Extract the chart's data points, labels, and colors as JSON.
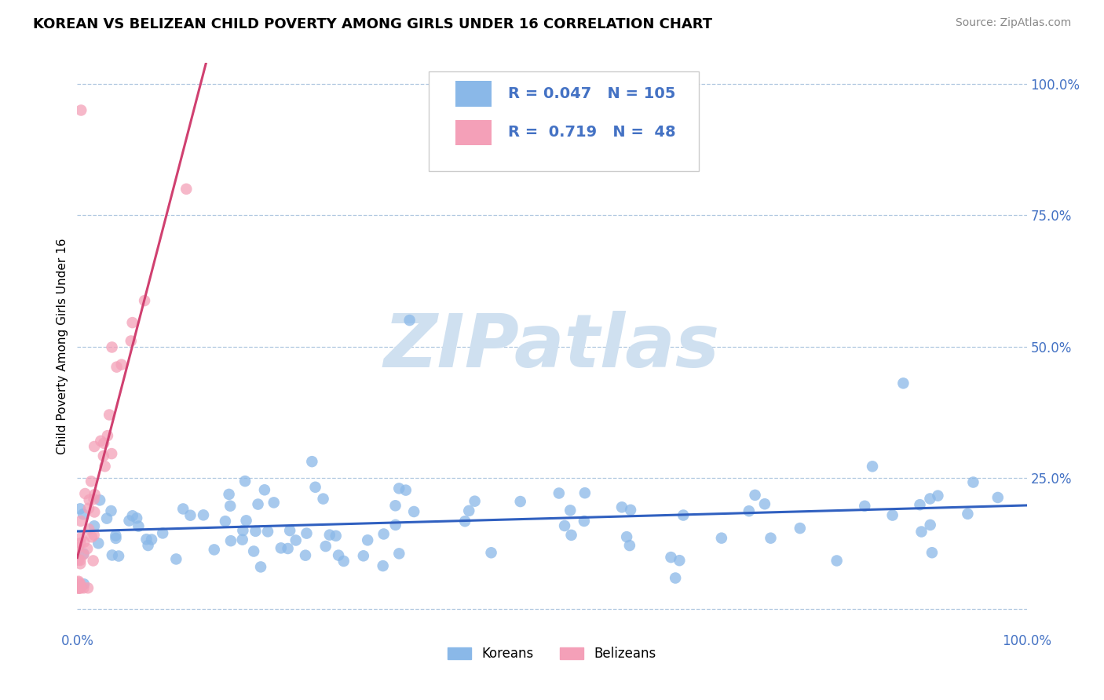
{
  "title": "KOREAN VS BELIZEAN CHILD POVERTY AMONG GIRLS UNDER 16 CORRELATION CHART",
  "source": "Source: ZipAtlas.com",
  "ylabel": "Child Poverty Among Girls Under 16",
  "xlim": [
    0,
    1
  ],
  "ylim": [
    -0.04,
    1.04
  ],
  "korean_color": "#8ab8e8",
  "belizean_color": "#f4a0b8",
  "korean_line_color": "#3060c0",
  "belizean_line_color": "#d04070",
  "korean_R": 0.047,
  "korean_N": 105,
  "belizean_R": 0.719,
  "belizean_N": 48,
  "watermark": "ZIPatlas",
  "watermark_color": "#cfe0f0",
  "legend_text_color": "#4472c4",
  "background_color": "#ffffff",
  "grid_color": "#b0c8e0",
  "title_fontsize": 13
}
